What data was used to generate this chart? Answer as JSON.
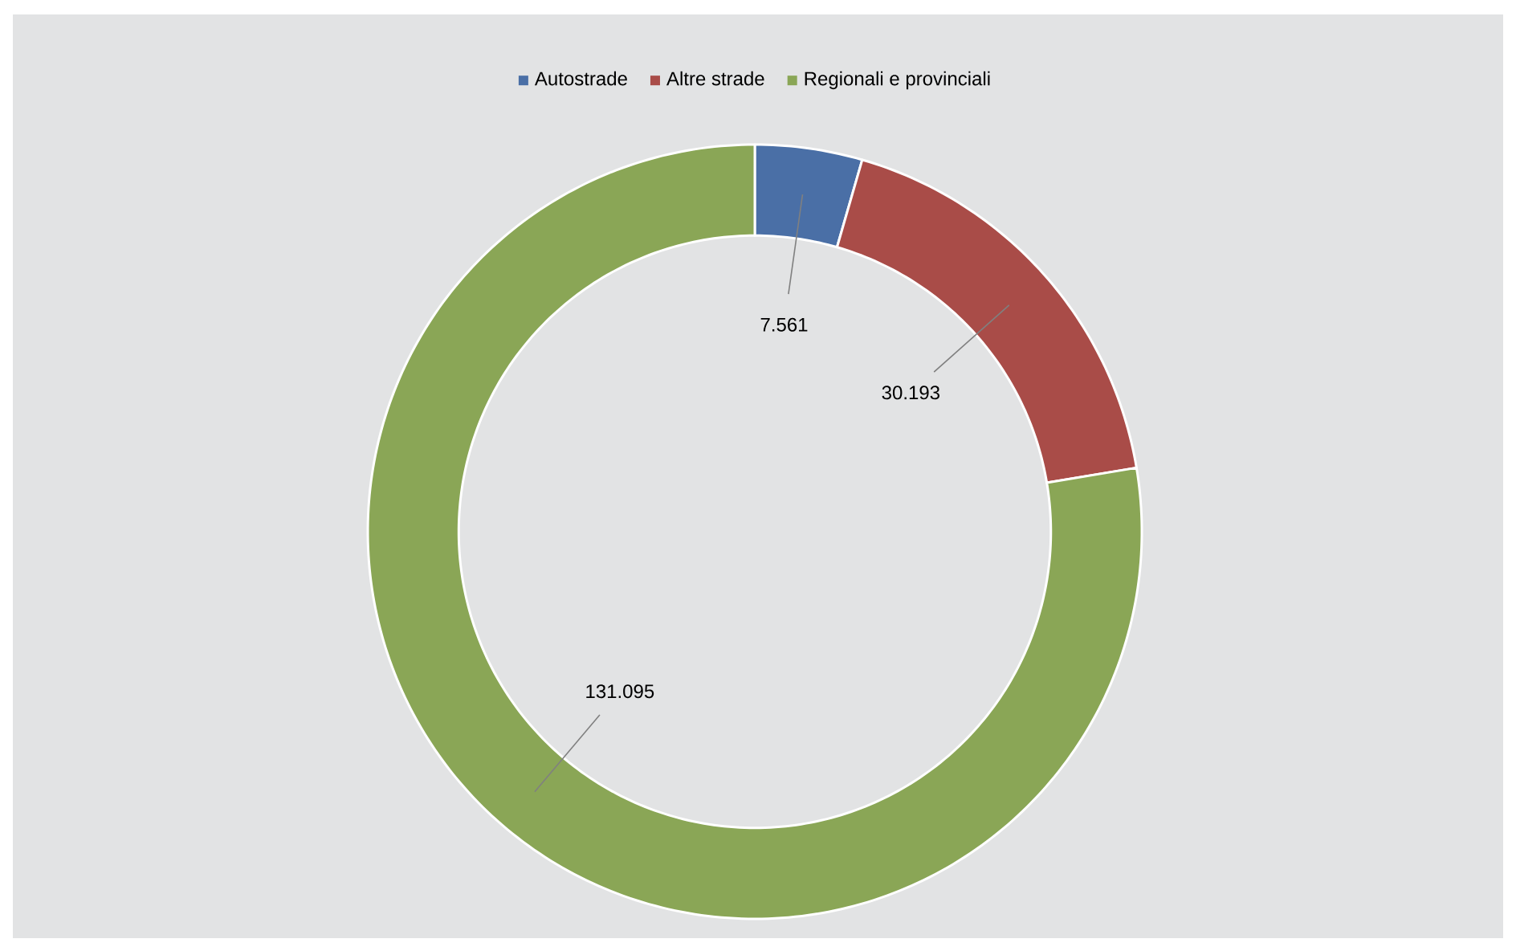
{
  "chart_data": {
    "type": "donut",
    "categories": [
      "Autostrade",
      "Altre strade",
      "Regionali e provinciali"
    ],
    "values": [
      7561,
      30193,
      131095
    ],
    "value_labels": [
      "7.561",
      "30.193",
      "131.095"
    ],
    "colors": [
      "#4a6fa6",
      "#a94c48",
      "#8aa656"
    ],
    "legend": "top"
  }
}
